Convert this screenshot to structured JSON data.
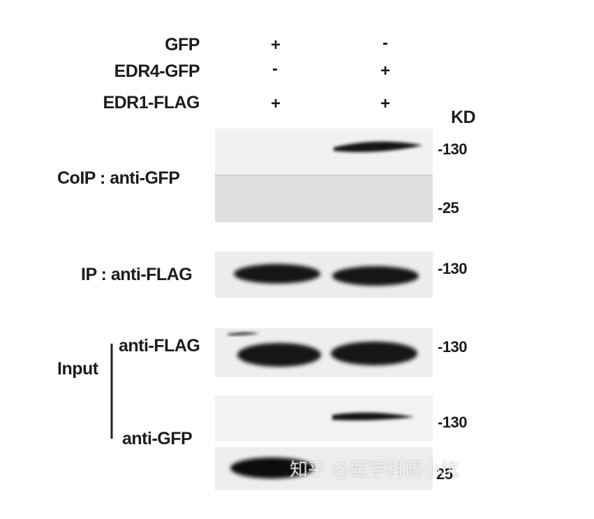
{
  "header_rows": [
    {
      "label": "GFP",
      "lane1": "+",
      "lane2": "-"
    },
    {
      "label": "EDR4-GFP",
      "lane1": "-",
      "lane2": "+"
    },
    {
      "label": "EDR1-FLAG",
      "lane1": "+",
      "lane2": "+"
    }
  ],
  "kd_label": "KD",
  "panels": {
    "coip": {
      "label": "CoIP : anti-GFP",
      "mw_top": "-130",
      "mw_bottom": "-25"
    },
    "ip": {
      "label": "IP : anti-FLAG",
      "mw": "-130"
    },
    "input": {
      "group_label": "Input",
      "flag_label": "anti-FLAG",
      "flag_mw": "-130",
      "gfp_label": "anti-GFP",
      "gfp_mw_top": "-130",
      "gfp_mw_bottom": "25"
    }
  },
  "watermark": "知乎 @医学科研小坑",
  "colors": {
    "band": "#141414",
    "membrane": "#ececec",
    "membrane_dark": "#dcdcdc"
  }
}
